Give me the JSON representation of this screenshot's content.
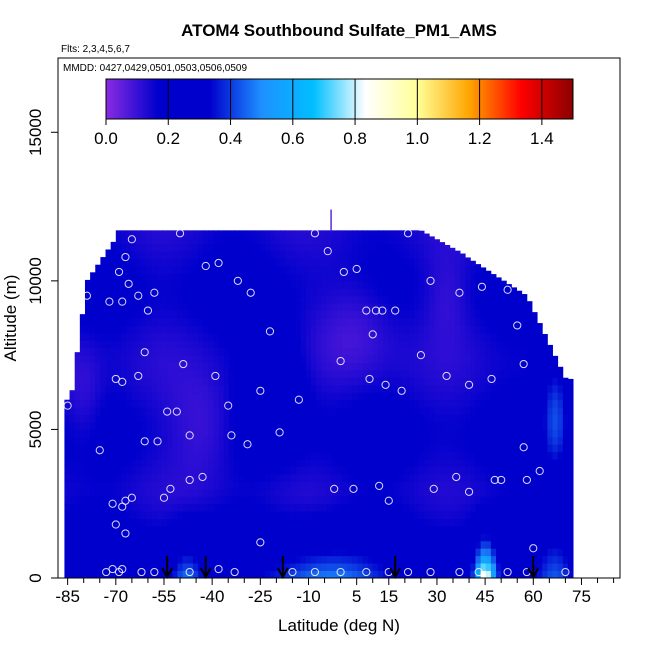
{
  "chart_data": {
    "type": "heatmap",
    "title": "ATOM4 Southbound Sulfate_PM1_AMS",
    "subtitle_flights": "Flts: 2,3,4,5,6,7",
    "subtitle_dates": "MMDD: 0427,0429,0501,0503,0506,0509",
    "xlabel": "Latitude (deg N)",
    "ylabel": "Altitude (m)",
    "xlim": [
      -88,
      87
    ],
    "ylim": [
      0,
      17500
    ],
    "xticks": [
      -85,
      -70,
      -55,
      -40,
      -25,
      -10,
      5,
      15,
      30,
      45,
      60,
      75
    ],
    "xtick_labels": [
      "-85",
      "-70",
      "-55",
      "-40",
      "-25",
      "-10",
      "5",
      "15",
      "30",
      "45",
      "60",
      "75"
    ],
    "yticks": [
      0,
      5000,
      10000,
      15000
    ],
    "ytick_labels": [
      "0",
      "5000",
      "10000",
      "15000"
    ],
    "colorbar": {
      "min": 0.0,
      "max": 1.5,
      "tick_values": [
        0.0,
        0.2,
        0.4,
        0.6,
        0.8,
        1.0,
        1.2,
        1.4
      ],
      "tick_labels": [
        "0.0",
        "0.2",
        "0.4",
        "0.6",
        "0.8",
        "1.0",
        "1.2",
        "1.4"
      ],
      "colors": [
        "#8a2be2",
        "#0000cd",
        "#0000cd",
        "#1e90ff",
        "#00bfff",
        "#ffffff",
        "#ffff99",
        "#ffa500",
        "#ff0000",
        "#8b0000"
      ]
    },
    "arrow_latitudes": [
      -54,
      -42,
      -18,
      17,
      60
    ],
    "sample_points": [
      [
        -85,
        5800
      ],
      [
        -79,
        9500
      ],
      [
        -75,
        4300
      ],
      [
        -72,
        9300
      ],
      [
        -70,
        6700
      ],
      [
        -68,
        6600
      ],
      [
        -69,
        10300
      ],
      [
        -67,
        10800
      ],
      [
        -66,
        9900
      ],
      [
        -65,
        11400
      ],
      [
        -68,
        9300
      ],
      [
        -63,
        6800
      ],
      [
        -63,
        9500
      ],
      [
        -61,
        7600
      ],
      [
        -60,
        9000
      ],
      [
        -58,
        9600
      ],
      [
        -61,
        4600
      ],
      [
        -57,
        4600
      ],
      [
        -54,
        5600
      ],
      [
        -51,
        5600
      ],
      [
        -50,
        11600
      ],
      [
        -49,
        7200
      ],
      [
        -47,
        4800
      ],
      [
        -47,
        3300
      ],
      [
        -43,
        3400
      ],
      [
        -42,
        10500
      ],
      [
        -39,
        6800
      ],
      [
        -38,
        10600
      ],
      [
        -35,
        5800
      ],
      [
        -34,
        4800
      ],
      [
        -32,
        10000
      ],
      [
        -29,
        4500
      ],
      [
        -28,
        9600
      ],
      [
        -25,
        6300
      ],
      [
        -22,
        8300
      ],
      [
        -19,
        4900
      ],
      [
        -13,
        6000
      ],
      [
        -8,
        11600
      ],
      [
        -4,
        11000
      ],
      [
        -2,
        3000
      ],
      [
        1,
        10300
      ],
      [
        0,
        7300
      ],
      [
        4,
        3000
      ],
      [
        5,
        10400
      ],
      [
        8,
        9000
      ],
      [
        11,
        9000
      ],
      [
        10,
        8200
      ],
      [
        9,
        6700
      ],
      [
        12,
        3100
      ],
      [
        13,
        9000
      ],
      [
        14,
        6500
      ],
      [
        15,
        2600
      ],
      [
        17,
        9000
      ],
      [
        19,
        6300
      ],
      [
        21,
        11600
      ],
      [
        25,
        7500
      ],
      [
        28,
        10000
      ],
      [
        29,
        3000
      ],
      [
        33,
        6800
      ],
      [
        36,
        3400
      ],
      [
        37,
        9600
      ],
      [
        40,
        6500
      ],
      [
        40,
        2900
      ],
      [
        44,
        9800
      ],
      [
        47,
        6700
      ],
      [
        48,
        3300
      ],
      [
        50,
        3300
      ],
      [
        52,
        9700
      ],
      [
        55,
        8500
      ],
      [
        57,
        7200
      ],
      [
        57,
        4400
      ],
      [
        58,
        3300
      ],
      [
        60,
        1000
      ],
      [
        62,
        3600
      ],
      [
        -55,
        2700
      ],
      [
        -65,
        2700
      ],
      [
        -67,
        2600
      ],
      [
        -68,
        2400
      ],
      [
        -71,
        2500
      ],
      [
        -70,
        1800
      ],
      [
        -67,
        1500
      ],
      [
        -53,
        3000
      ],
      [
        -25,
        1200
      ],
      [
        -38,
        300
      ],
      [
        -33,
        200
      ],
      [
        -47,
        200
      ],
      [
        -58,
        200
      ],
      [
        -68,
        300
      ],
      [
        -69,
        200
      ],
      [
        -73,
        200
      ],
      [
        -62,
        200
      ],
      [
        -15,
        200
      ],
      [
        -8,
        200
      ],
      [
        0,
        200
      ],
      [
        8,
        200
      ],
      [
        15,
        200
      ],
      [
        21,
        200
      ],
      [
        28,
        200
      ],
      [
        37,
        200
      ],
      [
        43,
        200
      ],
      [
        52,
        200
      ],
      [
        58,
        200
      ],
      [
        70,
        200
      ],
      [
        -71,
        300
      ]
    ]
  }
}
